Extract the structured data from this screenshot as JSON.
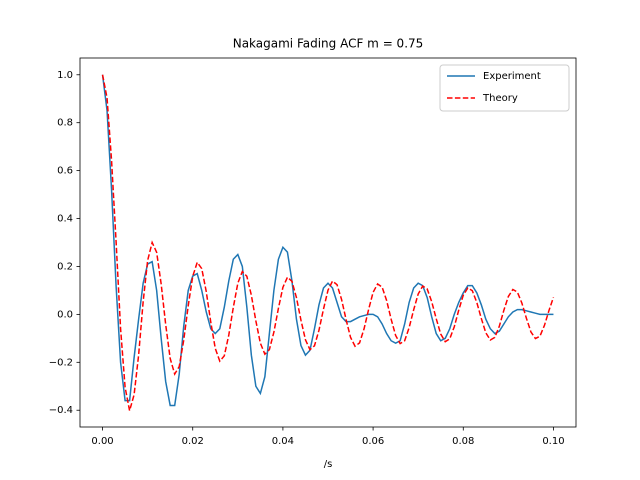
{
  "chart_data": {
    "type": "line",
    "title": "Nakagami Fading ACF m = 0.75",
    "xlabel": "/s",
    "x": [
      0,
      0.001,
      0.002,
      0.003,
      0.004,
      0.005,
      0.006,
      0.007,
      0.008,
      0.009,
      0.01,
      0.011,
      0.012,
      0.013,
      0.014,
      0.015,
      0.016,
      0.017,
      0.018,
      0.019,
      0.02,
      0.021,
      0.022,
      0.023,
      0.024,
      0.025,
      0.026,
      0.027,
      0.028,
      0.029,
      0.03,
      0.031,
      0.032,
      0.033,
      0.034,
      0.035,
      0.036,
      0.037,
      0.038,
      0.039,
      0.04,
      0.041,
      0.042,
      0.043,
      0.044,
      0.045,
      0.046,
      0.047,
      0.048,
      0.049,
      0.05,
      0.051,
      0.052,
      0.053,
      0.054,
      0.055,
      0.056,
      0.057,
      0.058,
      0.059,
      0.06,
      0.061,
      0.062,
      0.063,
      0.064,
      0.065,
      0.066,
      0.067,
      0.068,
      0.069,
      0.07,
      0.071,
      0.072,
      0.073,
      0.074,
      0.075,
      0.076,
      0.077,
      0.078,
      0.079,
      0.08,
      0.081,
      0.082,
      0.083,
      0.084,
      0.085,
      0.086,
      0.087,
      0.088,
      0.089,
      0.09,
      0.091,
      0.092,
      0.093,
      0.094,
      0.095,
      0.096,
      0.097,
      0.098,
      0.099,
      0.1
    ],
    "series": [
      {
        "name": "Experiment",
        "color": "#1f77b4",
        "linestyle": "solid",
        "values": [
          1.0,
          0.85,
          0.52,
          0.12,
          -0.2,
          -0.36,
          -0.36,
          -0.18,
          -0.02,
          0.13,
          0.21,
          0.22,
          0.1,
          -0.1,
          -0.28,
          -0.38,
          -0.38,
          -0.25,
          -0.05,
          0.1,
          0.16,
          0.17,
          0.1,
          0.01,
          -0.06,
          -0.08,
          -0.06,
          0.03,
          0.14,
          0.23,
          0.25,
          0.2,
          0.03,
          -0.17,
          -0.3,
          -0.33,
          -0.26,
          -0.08,
          0.1,
          0.23,
          0.28,
          0.26,
          0.14,
          -0.02,
          -0.13,
          -0.17,
          -0.15,
          -0.06,
          0.04,
          0.11,
          0.13,
          0.11,
          0.05,
          -0.01,
          -0.03,
          -0.03,
          -0.02,
          -0.01,
          -0.005,
          0.0,
          0.0,
          -0.01,
          -0.04,
          -0.08,
          -0.11,
          -0.12,
          -0.11,
          -0.04,
          0.05,
          0.11,
          0.13,
          0.12,
          0.07,
          -0.01,
          -0.08,
          -0.11,
          -0.1,
          -0.06,
          0.0,
          0.05,
          0.09,
          0.12,
          0.12,
          0.09,
          0.04,
          -0.02,
          -0.06,
          -0.08,
          -0.07,
          -0.04,
          -0.01,
          0.01,
          0.02,
          0.02,
          0.015,
          0.01,
          0.005,
          0.0,
          0.0,
          0.0,
          0.0
        ]
      },
      {
        "name": "Theory",
        "color": "#ff0000",
        "linestyle": "dashed",
        "values": [
          1.0,
          0.903,
          0.642,
          0.305,
          -0.06,
          -0.304,
          -0.402,
          -0.335,
          -0.17,
          0.052,
          0.225,
          0.3,
          0.259,
          0.127,
          -0.042,
          -0.184,
          -0.249,
          -0.218,
          -0.108,
          0.036,
          0.159,
          0.217,
          0.191,
          0.095,
          -0.032,
          -0.142,
          -0.195,
          -0.173,
          -0.086,
          0.029,
          0.13,
          0.179,
          0.159,
          0.08,
          -0.027,
          -0.12,
          -0.166,
          -0.147,
          -0.074,
          0.025,
          0.113,
          0.155,
          0.138,
          0.07,
          -0.024,
          -0.106,
          -0.147,
          -0.131,
          -0.066,
          0.022,
          0.101,
          0.139,
          0.124,
          0.063,
          -0.021,
          -0.096,
          -0.133,
          -0.119,
          -0.06,
          0.02,
          0.092,
          0.127,
          0.114,
          0.058,
          -0.02,
          -0.088,
          -0.122,
          -0.11,
          -0.055,
          0.019,
          0.085,
          0.118,
          0.106,
          0.053,
          -0.018,
          -0.082,
          -0.114,
          -0.102,
          -0.052,
          0.018,
          0.08,
          0.11,
          0.099,
          0.05,
          -0.017,
          -0.077,
          -0.107,
          -0.096,
          -0.049,
          0.017,
          0.075,
          0.104,
          0.093,
          0.047,
          -0.016,
          -0.073,
          -0.101,
          -0.091,
          -0.046,
          0.016,
          0.071
        ]
      }
    ],
    "xlim": [
      -0.005,
      0.105
    ],
    "xticks": [
      {
        "value": 0,
        "label": "0.00"
      },
      {
        "value": 0.02,
        "label": "0.02"
      },
      {
        "value": 0.04,
        "label": "0.04"
      },
      {
        "value": 0.06,
        "label": "0.06"
      },
      {
        "value": 0.08,
        "label": "0.08"
      },
      {
        "value": 0.1,
        "label": "0.10"
      }
    ],
    "ylim": [
      -0.47,
      1.07
    ],
    "yticks": [
      {
        "value": -0.4,
        "label": "−0.4"
      },
      {
        "value": -0.2,
        "label": "−0.2"
      },
      {
        "value": 0,
        "label": "0.0"
      },
      {
        "value": 0.2,
        "label": "0.2"
      },
      {
        "value": 0.4,
        "label": "0.4"
      },
      {
        "value": 0.6,
        "label": "0.6"
      },
      {
        "value": 0.8,
        "label": "0.8"
      },
      {
        "value": 1.0,
        "label": "1.0"
      }
    ],
    "grid": false,
    "legend": "upper right"
  }
}
